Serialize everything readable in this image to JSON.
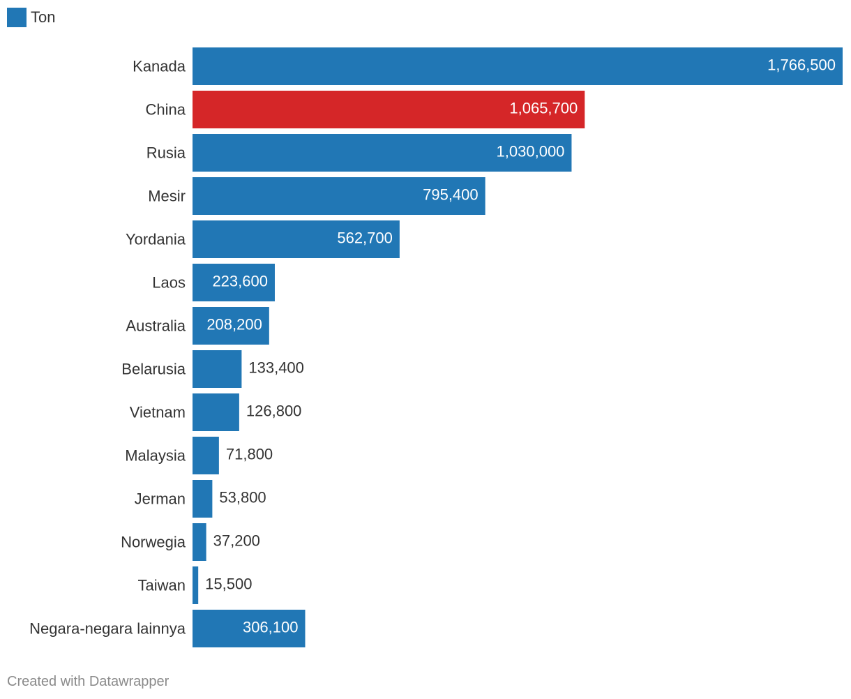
{
  "legend": {
    "label": "Ton",
    "color": "#2177b5"
  },
  "footer": {
    "credit": "Created with Datawrapper"
  },
  "colors": {
    "default_bar": "#2177b5",
    "highlight_bar": "#d52628",
    "label_text": "#333333",
    "value_inside": "#ffffff",
    "value_outside": "#333333"
  },
  "chart_data": {
    "type": "bar",
    "orientation": "horizontal",
    "title": "",
    "xlabel": "",
    "ylabel": "",
    "grid": false,
    "legend_position": "top-left",
    "xlim": [
      0,
      1766500
    ],
    "series": [
      {
        "name": "Ton"
      }
    ],
    "rows": [
      {
        "label": "Kanada",
        "value": 1766500,
        "value_label": "1,766,500",
        "highlight": false
      },
      {
        "label": "China",
        "value": 1065700,
        "value_label": "1,065,700",
        "highlight": true
      },
      {
        "label": "Rusia",
        "value": 1030000,
        "value_label": "1,030,000",
        "highlight": false
      },
      {
        "label": "Mesir",
        "value": 795400,
        "value_label": "795,400",
        "highlight": false
      },
      {
        "label": "Yordania",
        "value": 562700,
        "value_label": "562,700",
        "highlight": false
      },
      {
        "label": "Laos",
        "value": 223600,
        "value_label": "223,600",
        "highlight": false
      },
      {
        "label": "Australia",
        "value": 208200,
        "value_label": "208,200",
        "highlight": false
      },
      {
        "label": "Belarusia",
        "value": 133400,
        "value_label": "133,400",
        "highlight": false
      },
      {
        "label": "Vietnam",
        "value": 126800,
        "value_label": "126,800",
        "highlight": false
      },
      {
        "label": "Malaysia",
        "value": 71800,
        "value_label": "71,800",
        "highlight": false
      },
      {
        "label": "Jerman",
        "value": 53800,
        "value_label": "53,800",
        "highlight": false
      },
      {
        "label": "Norwegia",
        "value": 37200,
        "value_label": "37,200",
        "highlight": false
      },
      {
        "label": "Taiwan",
        "value": 15500,
        "value_label": "15,500",
        "highlight": false
      },
      {
        "label": "Negara-negara lainnya",
        "value": 306100,
        "value_label": "306,100",
        "highlight": false
      }
    ]
  }
}
